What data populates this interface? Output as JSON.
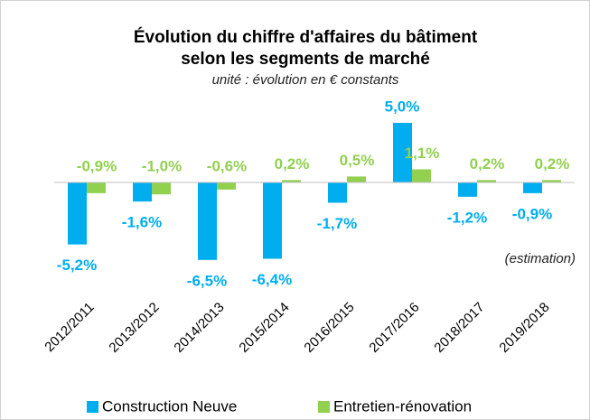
{
  "chart_data": {
    "type": "bar",
    "title": [
      "Évolution du chiffre d'affaires du bâtiment",
      "selon les segments de marché"
    ],
    "subtitle": "unité : évolution en € constants",
    "annotation": "(estimation)",
    "categories": [
      "2012/2011",
      "2013/2012",
      "2014/2013",
      "2015/2014",
      "2016/2015",
      "2017/2016",
      "2018/2017",
      "2019/2018"
    ],
    "series": [
      {
        "name": "Construction Neuve",
        "color": "#00aeef",
        "values": [
          -5.2,
          -1.6,
          -6.5,
          -6.4,
          -1.7,
          5.0,
          -1.2,
          -0.9
        ],
        "value_labels": [
          "-5,2%",
          "-1,6%",
          "-6,5%",
          "-6,4%",
          "-1,7%",
          "5,0%",
          "-1,2%",
          "-0,9%"
        ]
      },
      {
        "name": "Entretien-rénovation",
        "color": "#92d050",
        "values": [
          -0.9,
          -1.0,
          -0.6,
          0.2,
          0.5,
          1.1,
          0.2,
          0.2
        ],
        "value_labels": [
          "-0,9%",
          "-1,0%",
          "-0,6%",
          "0,2%",
          "0,5%",
          "1,1%",
          "0,2%",
          "0,2%"
        ]
      }
    ],
    "legend": "bottom"
  }
}
